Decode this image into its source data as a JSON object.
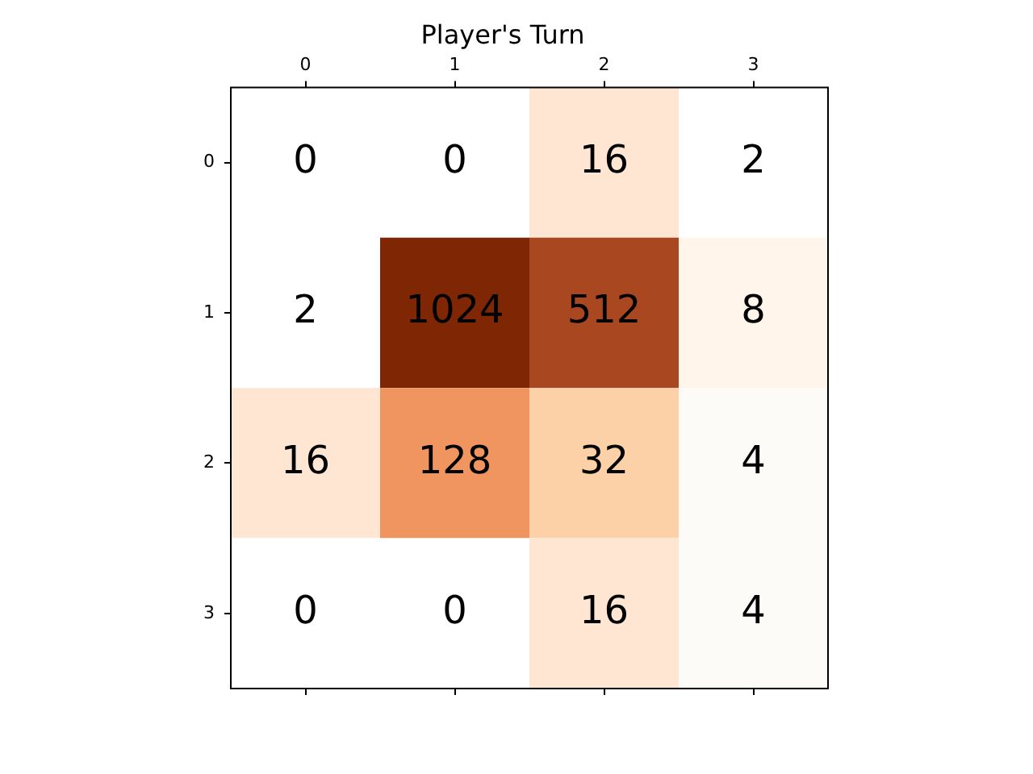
{
  "chart_data": {
    "type": "heatmap",
    "title": "Player's Turn",
    "categories": [
      "0",
      "1",
      "2",
      "3"
    ],
    "y_categories": [
      "0",
      "1",
      "2",
      "3"
    ],
    "cells": [
      [
        0,
        0,
        16,
        2
      ],
      [
        2,
        1024,
        512,
        8
      ],
      [
        16,
        128,
        32,
        4
      ],
      [
        0,
        0,
        16,
        4
      ]
    ],
    "colors": [
      [
        "#ffffff",
        "#ffffff",
        "#fee6d3",
        "#ffffff"
      ],
      [
        "#ffffff",
        "#7f2704",
        "#a84720",
        "#fff5eb"
      ],
      [
        "#fee6d3",
        "#f0955f",
        "#fdd1a8",
        "#fdfbf8"
      ],
      [
        "#ffffff",
        "#ffffff",
        "#fee6d3",
        "#fdfbf8"
      ]
    ],
    "data_labels": true,
    "grid": false
  }
}
